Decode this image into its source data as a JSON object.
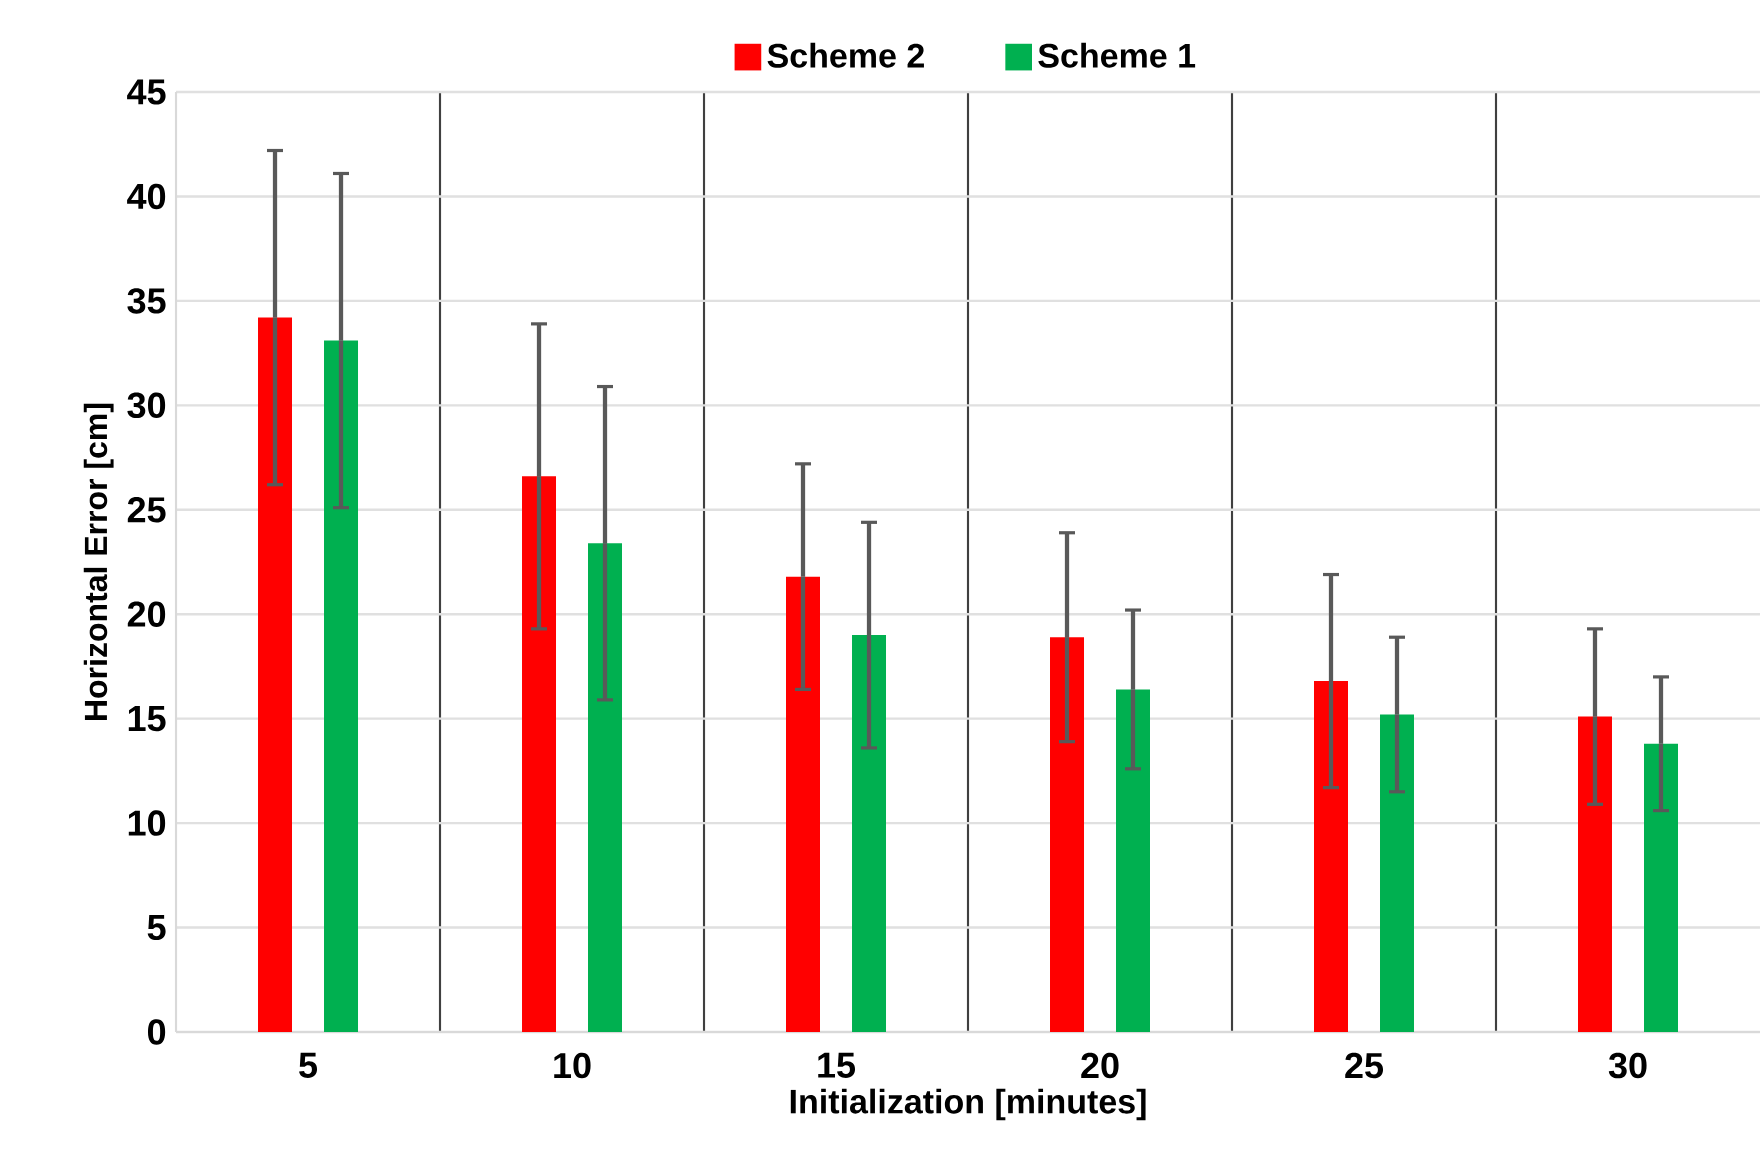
{
  "chart_data": {
    "type": "bar",
    "xlabel": "Initialization [minutes]",
    "ylabel": "Horizontal Error [cm]",
    "categories": [
      "5",
      "10",
      "15",
      "20",
      "25",
      "30"
    ],
    "series": [
      {
        "name": "Scheme 2",
        "color": "#ff0000",
        "values": [
          34.2,
          26.6,
          21.8,
          18.9,
          16.8,
          15.1
        ],
        "errors": [
          8,
          7.3,
          5.4,
          5.0,
          5.1,
          4.2
        ]
      },
      {
        "name": "Scheme 1",
        "color": "#00b050",
        "values": [
          33.1,
          23.4,
          19.0,
          16.4,
          15.2,
          13.8
        ],
        "errors": [
          8,
          7.5,
          5.4,
          3.8,
          3.7,
          3.2
        ]
      }
    ],
    "ylim": [
      0,
      45
    ],
    "yticks": [
      0,
      5,
      10,
      15,
      20,
      25,
      30,
      35,
      40,
      45
    ],
    "grid": true,
    "legend": "top"
  }
}
